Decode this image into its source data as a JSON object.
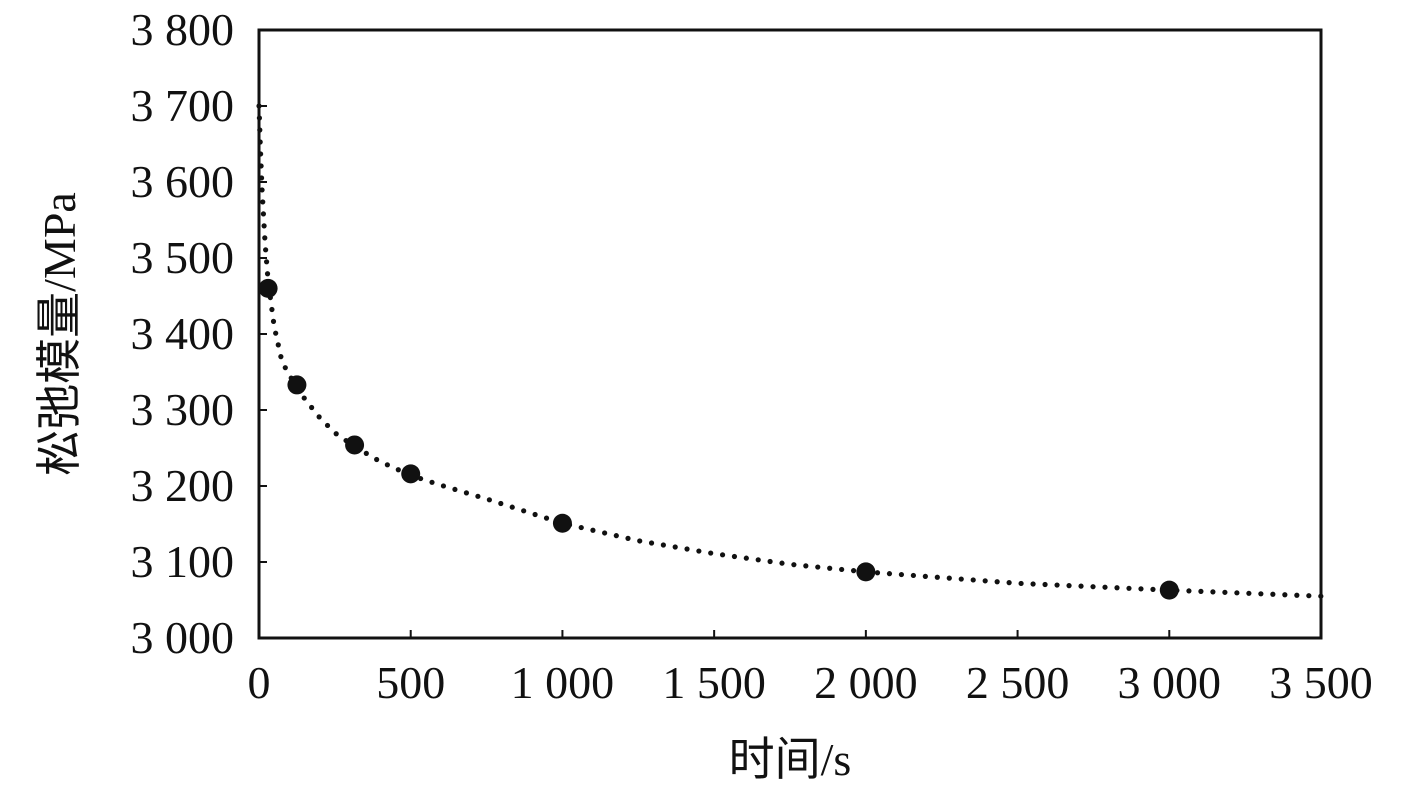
{
  "chart_data": {
    "type": "scatter",
    "xlabel": "时间/s",
    "ylabel": "松弛模量/MPa",
    "xlim": [
      0,
      3500
    ],
    "ylim": [
      3000,
      3800
    ],
    "x_ticks": [
      0,
      500,
      1000,
      1500,
      2000,
      2500,
      3000,
      3500
    ],
    "x_tick_labels": [
      "0",
      "500",
      "1 000",
      "1 500",
      "2 000",
      "2 500",
      "3 000",
      "3 500"
    ],
    "y_ticks": [
      3000,
      3100,
      3200,
      3300,
      3400,
      3500,
      3600,
      3700,
      3800
    ],
    "y_tick_labels": [
      "3 000",
      "3 100",
      "3 200",
      "3 300",
      "3 400",
      "3 500",
      "3 600",
      "3 700",
      "3 800"
    ],
    "grid": false,
    "series": [
      {
        "style": "markers",
        "x": [
          30,
          125,
          315,
          500,
          1000,
          2000,
          3000
        ],
        "y": [
          3460,
          3333,
          3254,
          3216,
          3151,
          3087,
          3063
        ]
      },
      {
        "style": "dotted-fit",
        "x": [
          0,
          5,
          10,
          20,
          30,
          50,
          75,
          100,
          125,
          150,
          200,
          250,
          315,
          400,
          500,
          600,
          750,
          1000,
          1250,
          1500,
          1750,
          2000,
          2500,
          3000,
          3500
        ],
        "y": [
          3700,
          3640,
          3590,
          3520,
          3470,
          3410,
          3365,
          3345,
          3333,
          3315,
          3290,
          3270,
          3252,
          3232,
          3214,
          3201,
          3183,
          3151,
          3128,
          3111,
          3097,
          3087,
          3072,
          3063,
          3055
        ]
      }
    ]
  }
}
